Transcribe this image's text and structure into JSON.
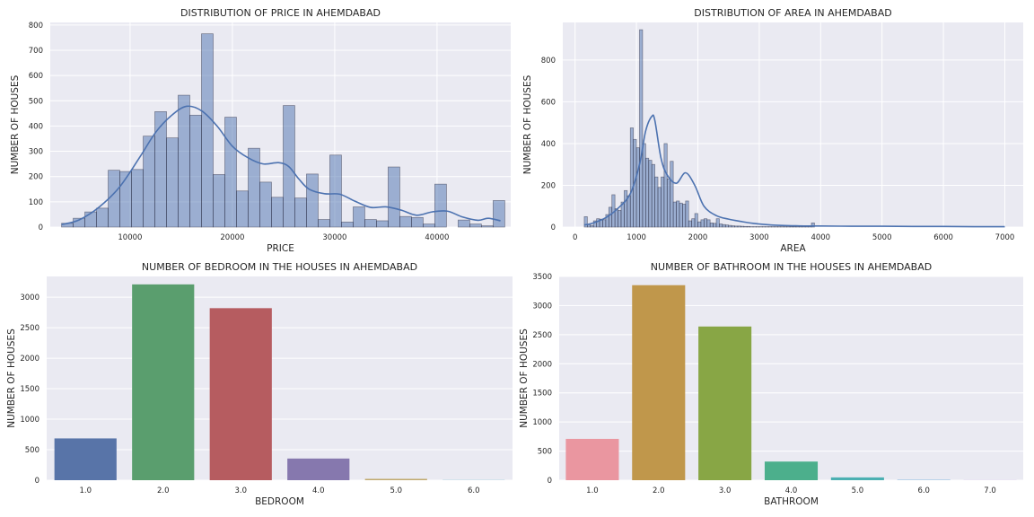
{
  "chart_data": [
    {
      "type": "histogram",
      "title": "DISTRIBUTION OF PRICE IN AHEMDABAD",
      "xlabel": "PRICE",
      "ylabel": "NUMBER OF HOUSES",
      "xlim": [
        2200,
        47200
      ],
      "ylim": [
        0,
        810
      ],
      "xticks": [
        10000,
        20000,
        30000,
        40000
      ],
      "yticks": [
        0,
        100,
        200,
        300,
        400,
        500,
        600,
        700,
        800
      ],
      "bin_start": 3300,
      "bin_width": 1140,
      "counts": [
        15,
        35,
        60,
        75,
        225,
        220,
        228,
        360,
        457,
        353,
        522,
        443,
        765,
        208,
        435,
        143,
        312,
        178,
        118,
        481,
        115,
        210,
        30,
        285,
        20,
        80,
        30,
        25,
        238,
        42,
        38,
        12,
        170,
        0,
        28,
        12,
        5,
        105
      ],
      "kde": {
        "x": [
          3300,
          5000,
          7000,
          9000,
          11000,
          12500,
          14000,
          15500,
          17000,
          18500,
          20000,
          21500,
          23000,
          24500,
          25500,
          26500,
          27500,
          29000,
          30500,
          32000,
          33500,
          35000,
          36500,
          38000,
          39500,
          41000,
          42500,
          44000,
          45000,
          46200
        ],
        "y": [
          10,
          28,
          80,
          160,
          280,
          375,
          440,
          478,
          460,
          400,
          320,
          275,
          250,
          255,
          240,
          190,
          150,
          132,
          130,
          102,
          78,
          80,
          67,
          47,
          60,
          63,
          40,
          27,
          35,
          25
        ]
      }
    },
    {
      "type": "histogram",
      "title": "DISTRIBUTION OF AREA IN AHEMDABAD",
      "xlabel": "AREA",
      "ylabel": "NUMBER OF HOUSES",
      "xlim": [
        -200,
        7300
      ],
      "ylim": [
        0,
        980
      ],
      "xticks": [
        0,
        1000,
        2000,
        3000,
        4000,
        5000,
        6000,
        7000
      ],
      "yticks": [
        0,
        200,
        400,
        600,
        800
      ],
      "bin_start": 150,
      "bin_width": 50,
      "counts": [
        50,
        12,
        8,
        30,
        40,
        38,
        35,
        60,
        95,
        155,
        88,
        80,
        120,
        175,
        150,
        475,
        420,
        380,
        945,
        400,
        330,
        320,
        300,
        240,
        190,
        240,
        400,
        230,
        315,
        120,
        125,
        115,
        110,
        125,
        30,
        40,
        65,
        25,
        35,
        40,
        35,
        20,
        18,
        40,
        15,
        12,
        10,
        8,
        6,
        5,
        5,
        4,
        3,
        3,
        2,
        2,
        2,
        2,
        2,
        2,
        2,
        2,
        2,
        2,
        2,
        2,
        2,
        3,
        3,
        2,
        2,
        2,
        2,
        2,
        20
      ],
      "kde": {
        "x": [
          150,
          300,
          500,
          700,
          900,
          1050,
          1150,
          1250,
          1300,
          1400,
          1500,
          1650,
          1800,
          1950,
          2100,
          2300,
          2500,
          2700,
          2900,
          3200,
          3600,
          4000,
          4500,
          5000,
          5500,
          6000,
          6500,
          7000
        ],
        "y": [
          10,
          20,
          45,
          90,
          160,
          300,
          460,
          530,
          510,
          330,
          250,
          210,
          260,
          200,
          100,
          55,
          38,
          27,
          18,
          10,
          6,
          5,
          4,
          4,
          3,
          3,
          2,
          2
        ]
      }
    },
    {
      "type": "bar",
      "title": "NUMBER OF BEDROOM IN THE HOUSES IN AHEMDABAD",
      "xlabel": "BEDROOM",
      "ylabel": "NUMBER OF HOUSES",
      "categories": [
        "1.0",
        "2.0",
        "3.0",
        "4.0",
        "5.0",
        "6.0"
      ],
      "values": [
        685,
        3210,
        2820,
        355,
        22,
        3
      ],
      "colors": [
        "#5874a8",
        "#5a9e6e",
        "#b65c60",
        "#8678ae",
        "#c0a96e",
        "#5fa8c4"
      ],
      "ylim": [
        0,
        3340
      ],
      "yticks": [
        0,
        500,
        1000,
        1500,
        2000,
        2500,
        3000
      ]
    },
    {
      "type": "bar",
      "title": "NUMBER OF BATHROOM IN THE HOUSES IN AHEMDABAD",
      "xlabel": "BATHROOM",
      "ylabel": "NUMBER OF HOUSES",
      "categories": [
        "1.0",
        "2.0",
        "3.0",
        "4.0",
        "5.0",
        "6.0",
        "7.0"
      ],
      "values": [
        710,
        3350,
        2640,
        320,
        48,
        6,
        2
      ],
      "colors": [
        "#ea96a0",
        "#c0974b",
        "#88a645",
        "#4caf8c",
        "#4cb0b2",
        "#6aa7d8",
        "#a98ed9"
      ],
      "ylim": [
        0,
        3500
      ],
      "yticks": [
        0,
        500,
        1000,
        1500,
        2000,
        2500,
        3000,
        3500
      ]
    }
  ]
}
